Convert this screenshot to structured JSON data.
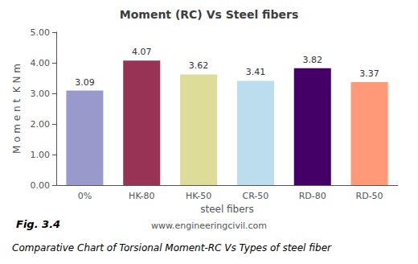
{
  "chart_data": {
    "type": "bar",
    "title": "Moment (RC) Vs Steel fibers",
    "x_label": "steel fibers",
    "y_label": "M o m e n t  K N m",
    "categories": [
      "0%",
      "HK-80",
      "HK-50",
      "CR-50",
      "RD-80",
      "RD-50"
    ],
    "values": [
      3.09,
      4.07,
      3.62,
      3.41,
      3.82,
      3.37
    ],
    "colors": [
      "#9999cc",
      "#993355",
      "#dddd99",
      "#bbddee",
      "#440066",
      "#ff9977"
    ],
    "ylim": [
      0,
      5.0
    ],
    "yticks": [
      {
        "value": 0,
        "label": "0.00"
      },
      {
        "value": 1,
        "label": "1.00"
      },
      {
        "value": 2,
        "label": "2.00"
      },
      {
        "value": 3,
        "label": "3.00"
      },
      {
        "value": 4,
        "label": "4.00"
      },
      {
        "value": 5,
        "label": "5.00"
      }
    ],
    "data_labels": true,
    "grid": false,
    "annotations": [
      "Fig. 3.4",
      "www.engineeringcivil.com",
      "Comparative Chart of Torsional Moment-RC Vs Types of steel fiber"
    ]
  }
}
